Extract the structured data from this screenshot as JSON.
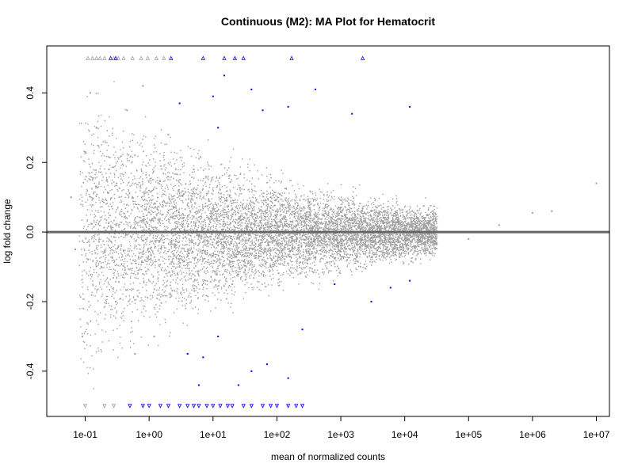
{
  "chart_data": {
    "type": "scatter",
    "title": "Continuous (M2): MA Plot for Hematocrit",
    "xlabel": "mean of normalized counts",
    "ylabel": "log fold change",
    "x_scale": "log10",
    "xlim": [
      0.025,
      16000000
    ],
    "ylim": [
      -0.53,
      0.535
    ],
    "x_ticks": [
      0.1,
      1,
      10,
      100,
      1000,
      10000,
      100000,
      1000000,
      10000000
    ],
    "x_tick_labels": [
      "1e-01",
      "1e+00",
      "1e+01",
      "1e+02",
      "1e+03",
      "1e+04",
      "1e+05",
      "1e+06",
      "1e+07"
    ],
    "y_ticks": [
      -0.4,
      -0.2,
      0.0,
      0.2,
      0.4
    ],
    "y_tick_labels": [
      "-0.4",
      "-0.2",
      "0.0",
      "0.2",
      "0.4"
    ],
    "reference_line": {
      "y": 0,
      "color": "#666666"
    },
    "colors": {
      "non_significant": "#9e9e9e",
      "significant": "#0000ff",
      "reference_line": "#666666"
    },
    "series": [
      {
        "name": "non-significant",
        "color": "#9e9e9e",
        "points": [
          [
            0.06,
            0.1
          ],
          [
            0.07,
            -0.05
          ],
          [
            0.09,
            -0.3
          ],
          [
            0.1,
            0.23
          ],
          [
            0.12,
            0.4
          ],
          [
            0.15,
            0.3
          ],
          [
            0.18,
            -0.1
          ],
          [
            0.22,
            0.15
          ],
          [
            0.3,
            -0.2
          ],
          [
            0.45,
            0.35
          ],
          [
            0.6,
            -0.35
          ],
          [
            0.8,
            0.42
          ],
          [
            1.2,
            -0.3
          ],
          [
            2.0,
            0.28
          ],
          [
            3.0,
            -0.1
          ],
          [
            5.0,
            0.18
          ],
          [
            20,
            -0.15
          ],
          [
            80,
            0.1
          ],
          [
            300,
            -0.08
          ],
          [
            1000,
            0.06
          ],
          [
            5000,
            -0.05
          ],
          [
            20000,
            0.04
          ],
          [
            100000,
            -0.02
          ],
          [
            300000,
            0.02
          ],
          [
            1000000,
            0.055
          ],
          [
            2000000,
            0.06
          ],
          [
            10000000,
            0.14
          ]
        ],
        "clipped_top_x": [
          0.11,
          0.13,
          0.15,
          0.17,
          0.2,
          0.28,
          0.33,
          0.4,
          0.55,
          0.75,
          0.95,
          1.3,
          1.7
        ],
        "clipped_bottom_x": [
          0.1,
          0.2,
          0.28
        ]
      },
      {
        "name": "significant",
        "color": "#0000ff",
        "points": [
          [
            10,
            0.39
          ],
          [
            12,
            0.3
          ],
          [
            15,
            0.45
          ],
          [
            40,
            0.41
          ],
          [
            150,
            0.36
          ],
          [
            400,
            0.41
          ],
          [
            1500,
            0.34
          ],
          [
            12000,
            0.36
          ],
          [
            3,
            0.37
          ],
          [
            60,
            0.35
          ],
          [
            4,
            -0.35
          ],
          [
            6,
            -0.44
          ],
          [
            7,
            -0.36
          ],
          [
            12,
            -0.3
          ],
          [
            25,
            -0.44
          ],
          [
            40,
            -0.4
          ],
          [
            70,
            -0.38
          ],
          [
            150,
            -0.42
          ],
          [
            250,
            -0.28
          ],
          [
            800,
            -0.15
          ],
          [
            3000,
            -0.2
          ],
          [
            6000,
            -0.16
          ],
          [
            12000,
            -0.14
          ]
        ],
        "clipped_top_x": [
          0.25,
          0.3,
          2.2,
          7,
          15,
          22,
          30,
          170,
          2200
        ],
        "clipped_bottom_x": [
          0.5,
          0.8,
          1.0,
          1.5,
          2,
          3,
          4,
          5,
          6,
          8,
          10,
          13,
          17,
          20,
          30,
          40,
          60,
          80,
          100,
          150,
          200,
          250
        ]
      }
    ]
  }
}
